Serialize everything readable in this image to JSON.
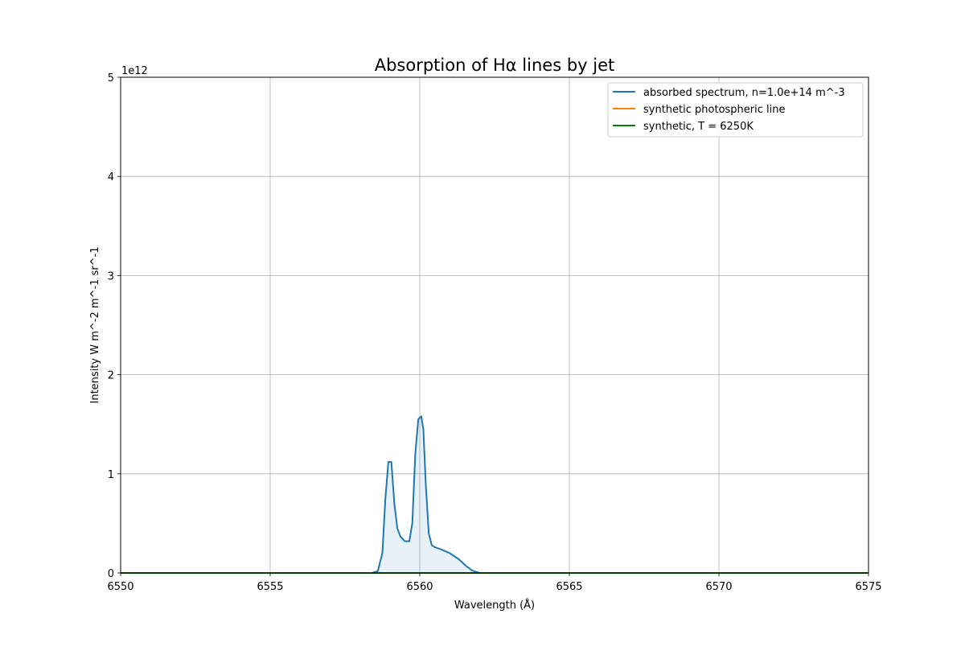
{
  "chart_data": {
    "type": "line",
    "title": "Absorption of Hα lines by jet",
    "xlabel": "Wavelength (Å)",
    "ylabel": "Intensity W m^-2 m^-1 sr^-1",
    "y_offset_label": "1e12",
    "xlim": [
      6550,
      6575
    ],
    "ylim": [
      0,
      5
    ],
    "y_scale_factor": 1000000000000.0,
    "x_ticks": [
      6550,
      6555,
      6560,
      6565,
      6570,
      6575
    ],
    "y_ticks": [
      0,
      1,
      2,
      3,
      4,
      5
    ],
    "grid": true,
    "legend_position": "upper right",
    "series": [
      {
        "name": "absorbed spectrum, n=1.0e+14 m^-3",
        "color": "#1f77b4",
        "fill": true,
        "x": [
          6550,
          6558.4,
          6558.6,
          6558.75,
          6558.85,
          6558.95,
          6559.05,
          6559.15,
          6559.25,
          6559.35,
          6559.5,
          6559.65,
          6559.75,
          6559.85,
          6559.95,
          6560.05,
          6560.12,
          6560.2,
          6560.3,
          6560.4,
          6560.5,
          6560.7,
          6561.0,
          6561.3,
          6561.55,
          6561.75,
          6561.9,
          6562.0,
          6562.2,
          6575
        ],
        "y": [
          0,
          0,
          0.02,
          0.2,
          0.75,
          1.12,
          1.12,
          0.7,
          0.45,
          0.37,
          0.32,
          0.32,
          0.5,
          1.2,
          1.55,
          1.58,
          1.45,
          0.9,
          0.4,
          0.28,
          0.26,
          0.24,
          0.2,
          0.14,
          0.07,
          0.025,
          0.01,
          0,
          0,
          0
        ]
      },
      {
        "name": "synthetic photospheric line",
        "color": "#ff7f0e",
        "fill": false,
        "x": [
          6550,
          6575
        ],
        "y": [
          0,
          0
        ]
      },
      {
        "name": "synthetic, T = 6250K",
        "color": "#008000",
        "fill": false,
        "x": [
          6550,
          6575
        ],
        "y": [
          0,
          0
        ]
      }
    ]
  }
}
